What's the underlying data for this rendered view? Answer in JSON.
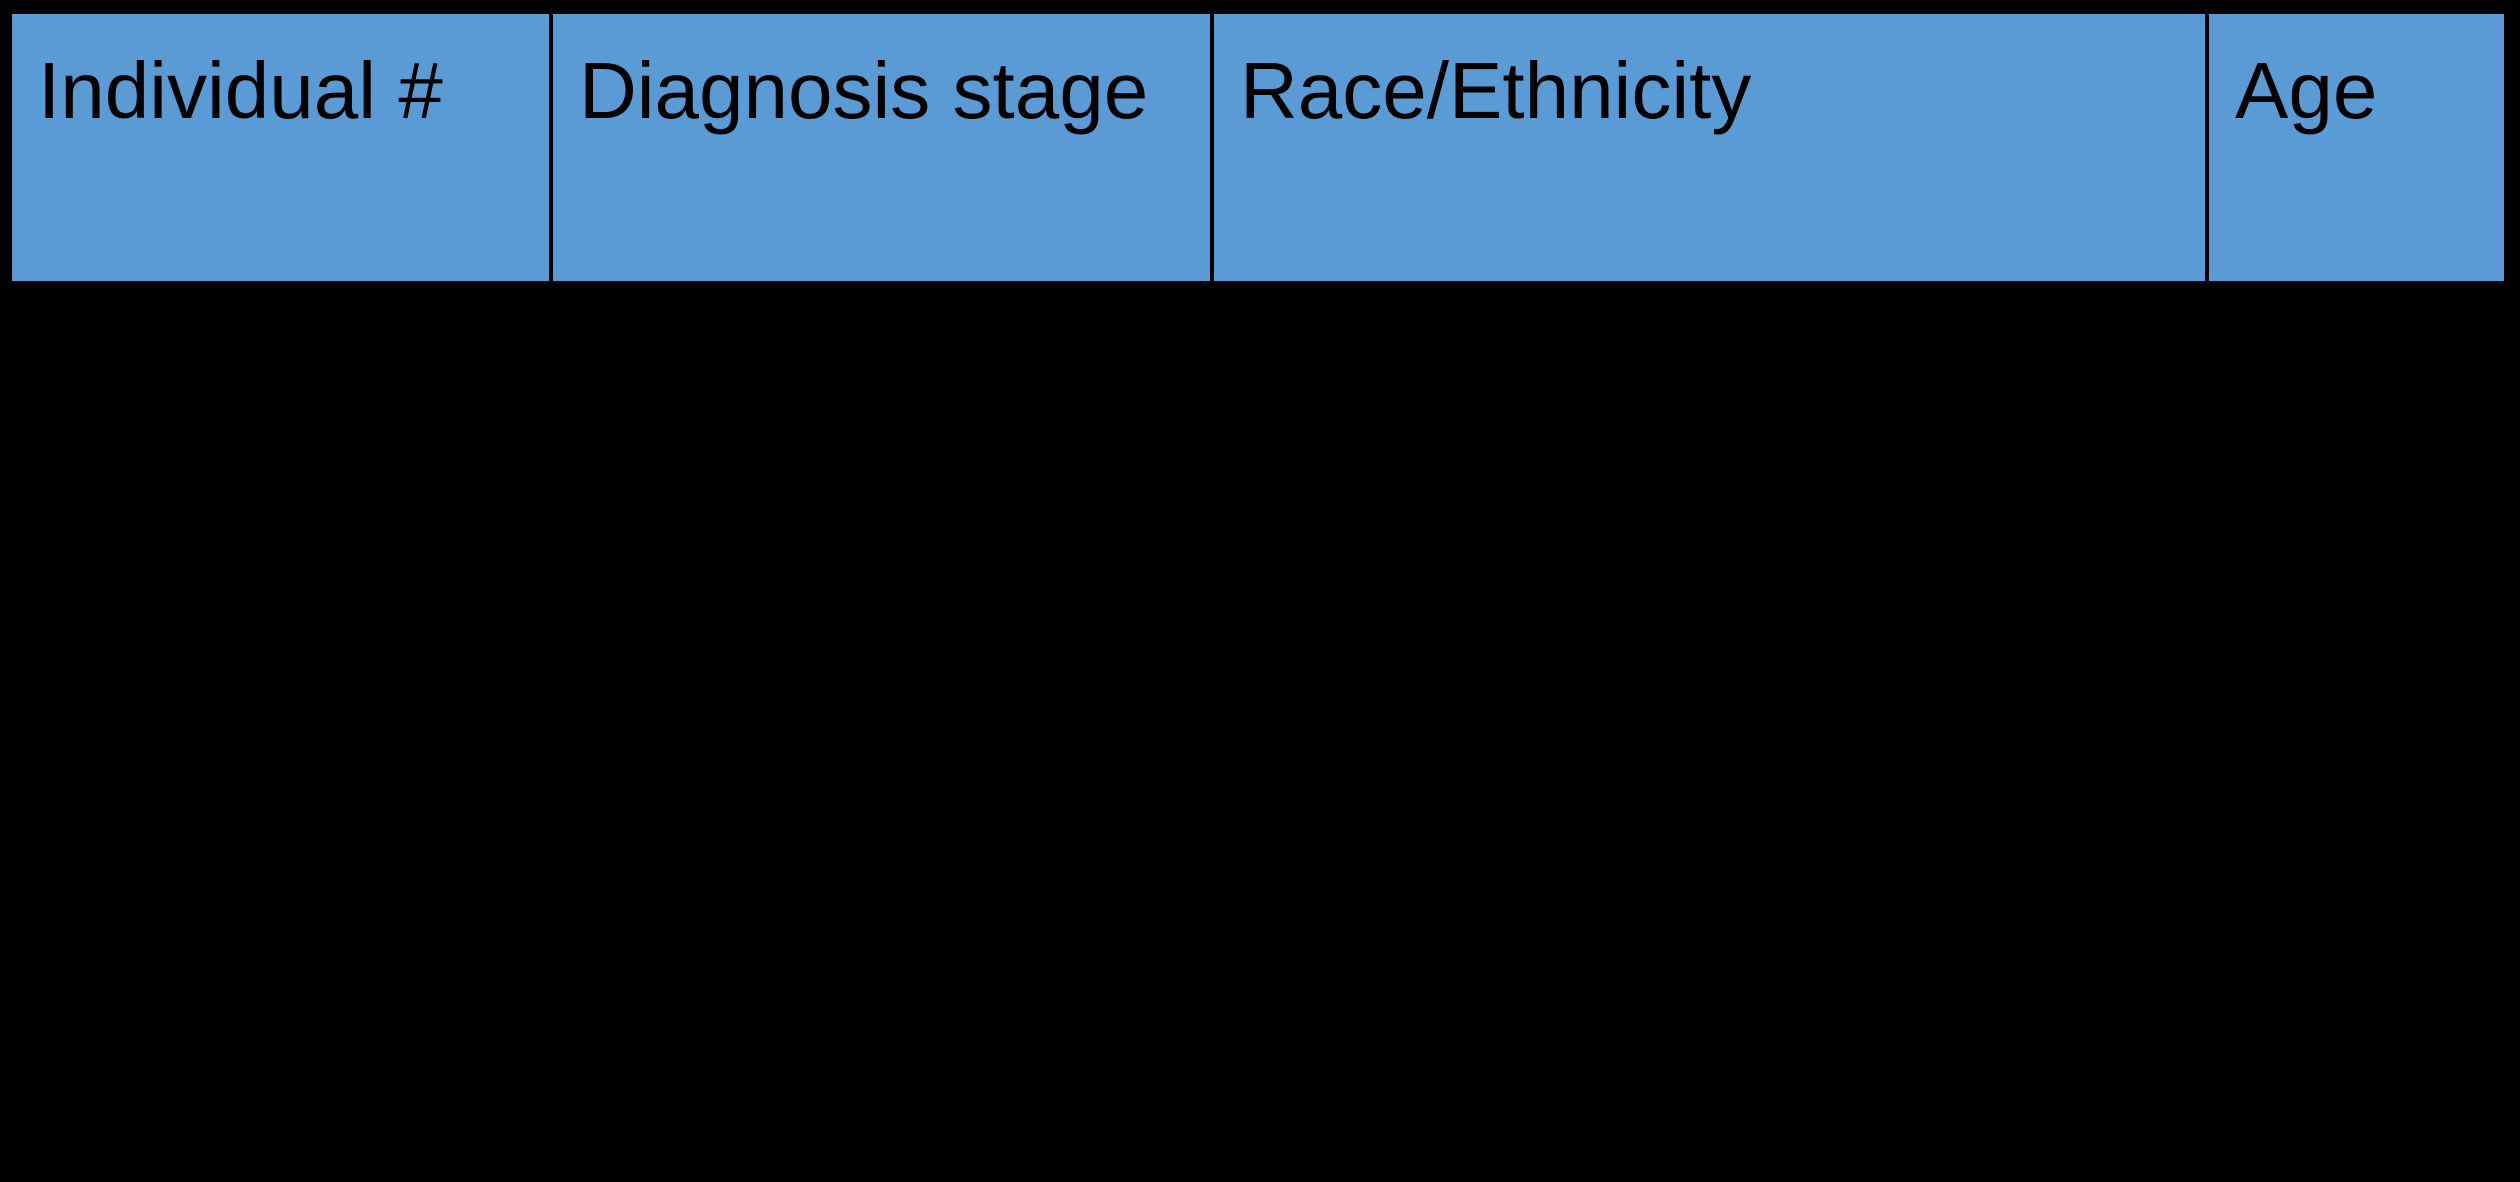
{
  "page": {
    "background": "#000000"
  },
  "table": {
    "columns": [
      {
        "label": "Individual #"
      },
      {
        "label": "Diagnosis stage"
      },
      {
        "label": "Race/Ethnicity"
      },
      {
        "label": "Age"
      }
    ],
    "rows": []
  },
  "colors": {
    "header_bg": "#5B9BD5",
    "header_text": "#000000",
    "grid_border": "#000000",
    "page_background": "#000000"
  }
}
